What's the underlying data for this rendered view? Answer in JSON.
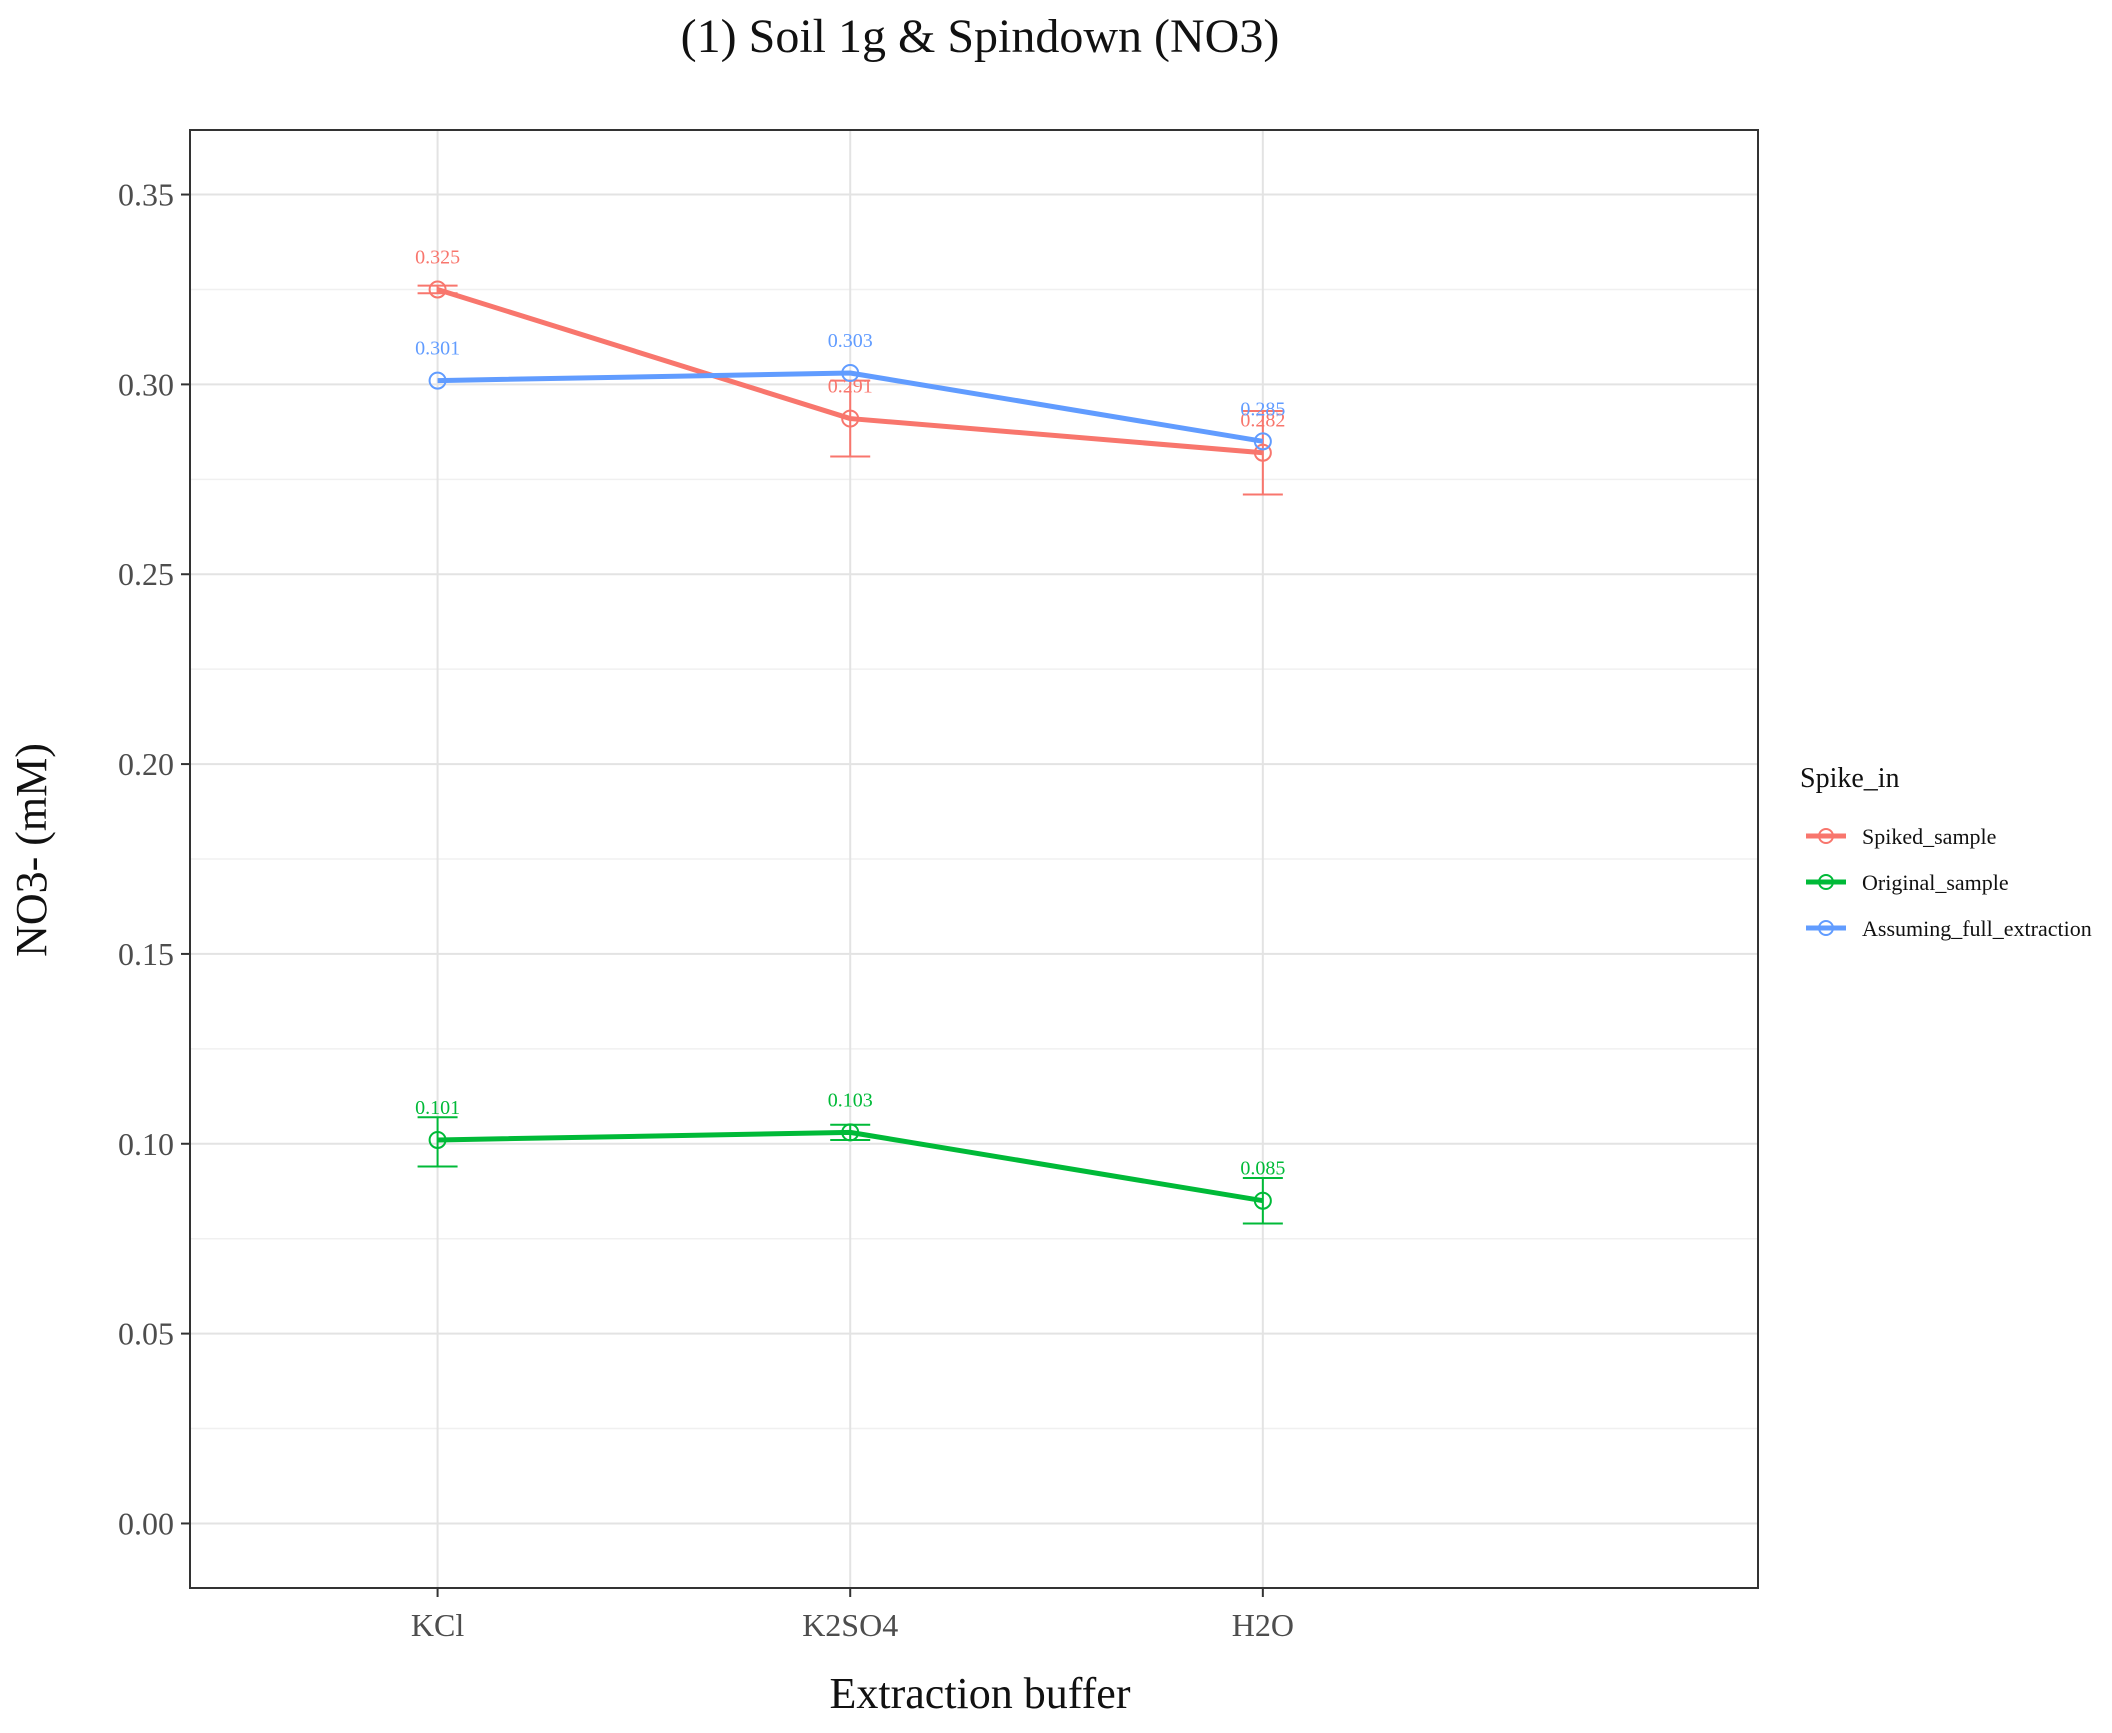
{
  "chart_data": {
    "type": "line",
    "title": "(1) Soil 1g & Spindown (NO3)",
    "xlabel": "Extraction buffer",
    "ylabel": "NO3- (mM)",
    "categories": [
      "KCl",
      "K2SO4",
      "H2O"
    ],
    "ylim": [
      -0.017,
      0.367
    ],
    "y_ticks": [
      0.0,
      0.05,
      0.1,
      0.15,
      0.2,
      0.25,
      0.3,
      0.35
    ],
    "y_tick_labels": [
      "0.00",
      "0.05",
      "0.10",
      "0.15",
      "0.20",
      "0.25",
      "0.30",
      "0.35"
    ],
    "grid": true,
    "legend": {
      "title": "Spike_in",
      "placement": "right"
    },
    "series": [
      {
        "name": "Spiked_sample",
        "color": "#F8766D",
        "values": [
          0.325,
          0.291,
          0.282
        ],
        "labels": [
          "0.325",
          "0.291",
          "0.282"
        ],
        "error_low": [
          0.324,
          0.281,
          0.271
        ],
        "error_high": [
          0.326,
          0.301,
          0.293
        ]
      },
      {
        "name": "Original_sample",
        "color": "#00BA38",
        "values": [
          0.101,
          0.103,
          0.085
        ],
        "labels": [
          "0.101",
          "0.103",
          "0.085"
        ],
        "error_low": [
          0.094,
          0.101,
          0.079
        ],
        "error_high": [
          0.107,
          0.105,
          0.091
        ]
      },
      {
        "name": "Assuming_full_extraction",
        "color": "#619CFF",
        "values": [
          0.301,
          0.303,
          0.285
        ],
        "labels": [
          "0.301",
          "0.303",
          "0.285"
        ],
        "error_low": [
          0.301,
          0.303,
          0.285
        ],
        "error_high": [
          0.301,
          0.303,
          0.285
        ]
      }
    ]
  }
}
